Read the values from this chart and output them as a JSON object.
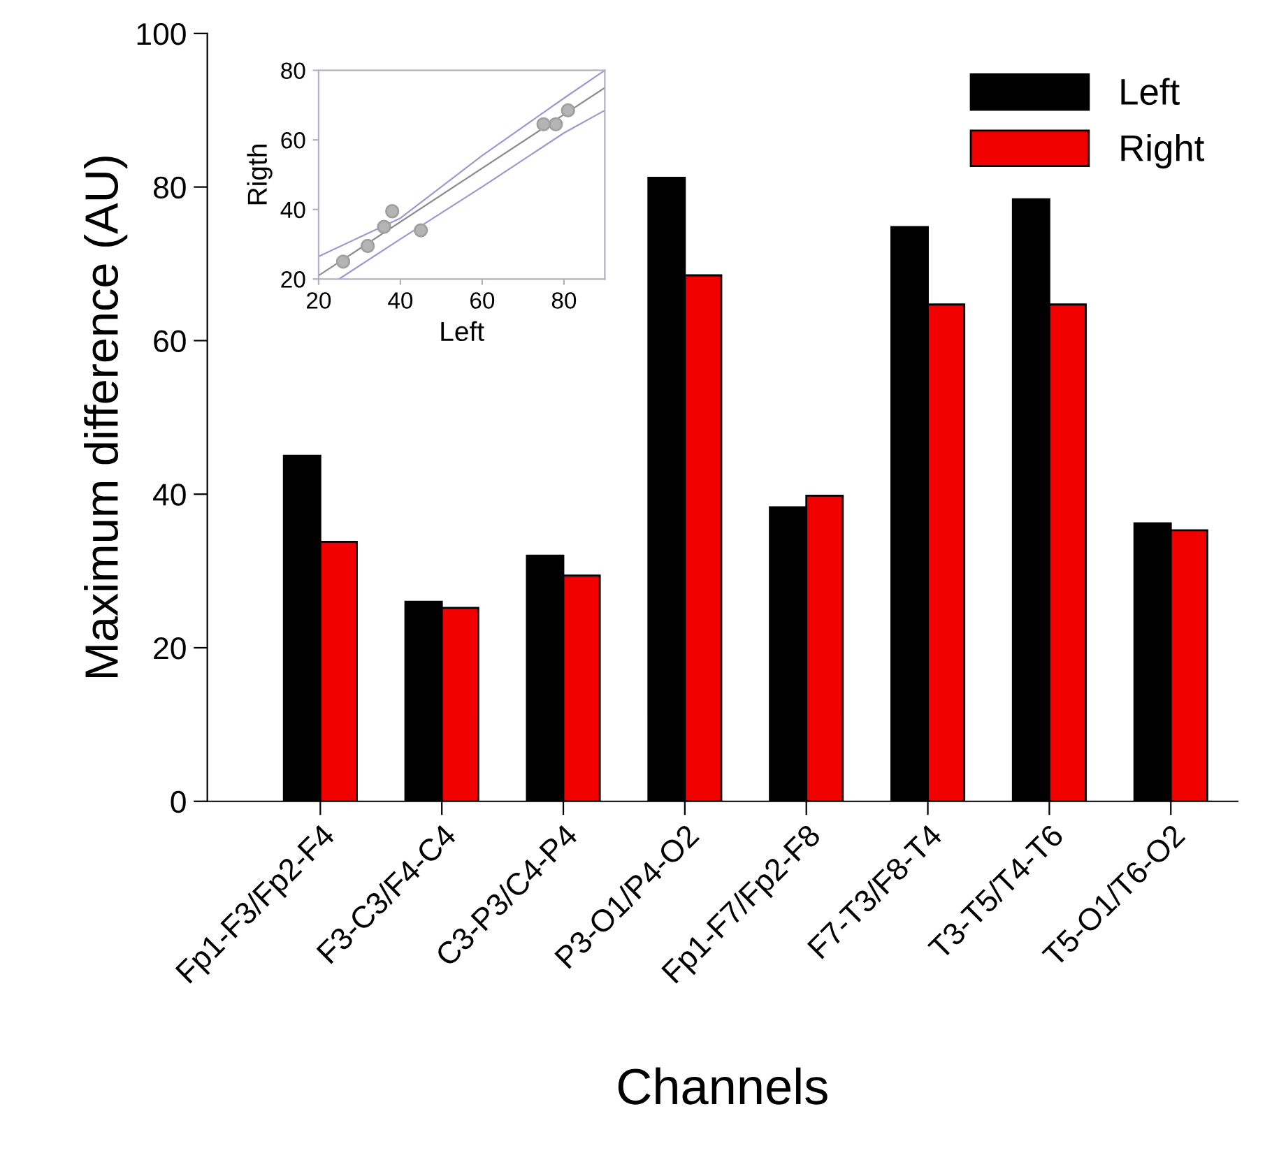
{
  "chart_data": [
    {
      "type": "bar",
      "xlabel": "Channels",
      "ylabel": "Maximum difference (AU)",
      "categories": [
        "Fp1-F3/Fp2-F4",
        "F3-C3/F4-C4",
        "C3-P3/C4-P4",
        "P3-O1/P4-O2",
        "Fp1-F7/Fp2-F8",
        "F7-T3/F8-T4",
        "T3-T5/T4-T6",
        "T5-O1/T6-O2"
      ],
      "series": [
        {
          "name": "Left",
          "color": "#000000",
          "values": [
            45.0,
            26.0,
            32.0,
            81.2,
            38.3,
            74.8,
            78.4,
            36.2
          ]
        },
        {
          "name": "Right",
          "color": "#f20000",
          "values": [
            33.8,
            25.2,
            29.4,
            68.5,
            39.8,
            64.7,
            64.7,
            35.3
          ]
        }
      ],
      "ylim": [
        0,
        100
      ],
      "yticks": [
        0,
        20,
        40,
        60,
        80,
        100
      ],
      "grid": false,
      "legend": "top right"
    },
    {
      "type": "scatter",
      "xlabel": "Left",
      "ylabel": "Rigth",
      "xlim": [
        20,
        90
      ],
      "ylim": [
        20,
        80
      ],
      "xticks": [
        20,
        40,
        60,
        80
      ],
      "yticks": [
        20,
        40,
        60,
        80
      ],
      "grid": false,
      "series": [
        {
          "type": "scatter",
          "color": "#b4b4b4",
          "x": [
            26,
            32,
            36,
            38,
            45,
            75,
            78,
            81
          ],
          "values": [
            25,
            29.5,
            35,
            39.5,
            34,
            64.5,
            64.5,
            68.5
          ]
        },
        {
          "type": "line",
          "color": "#8c8c8c",
          "x": [
            20,
            90
          ],
          "values": [
            21,
            75
          ]
        },
        {
          "type": "line",
          "color": "#9a9ad0",
          "x": [
            20,
            40,
            60,
            80,
            90
          ],
          "values": [
            26.5,
            37.5,
            55.5,
            72,
            80
          ]
        },
        {
          "type": "line",
          "color": "#9a9ad0",
          "x": [
            25,
            40,
            60,
            80,
            90
          ],
          "values": [
            20,
            31.5,
            46.5,
            62,
            68.5
          ]
        }
      ]
    }
  ]
}
